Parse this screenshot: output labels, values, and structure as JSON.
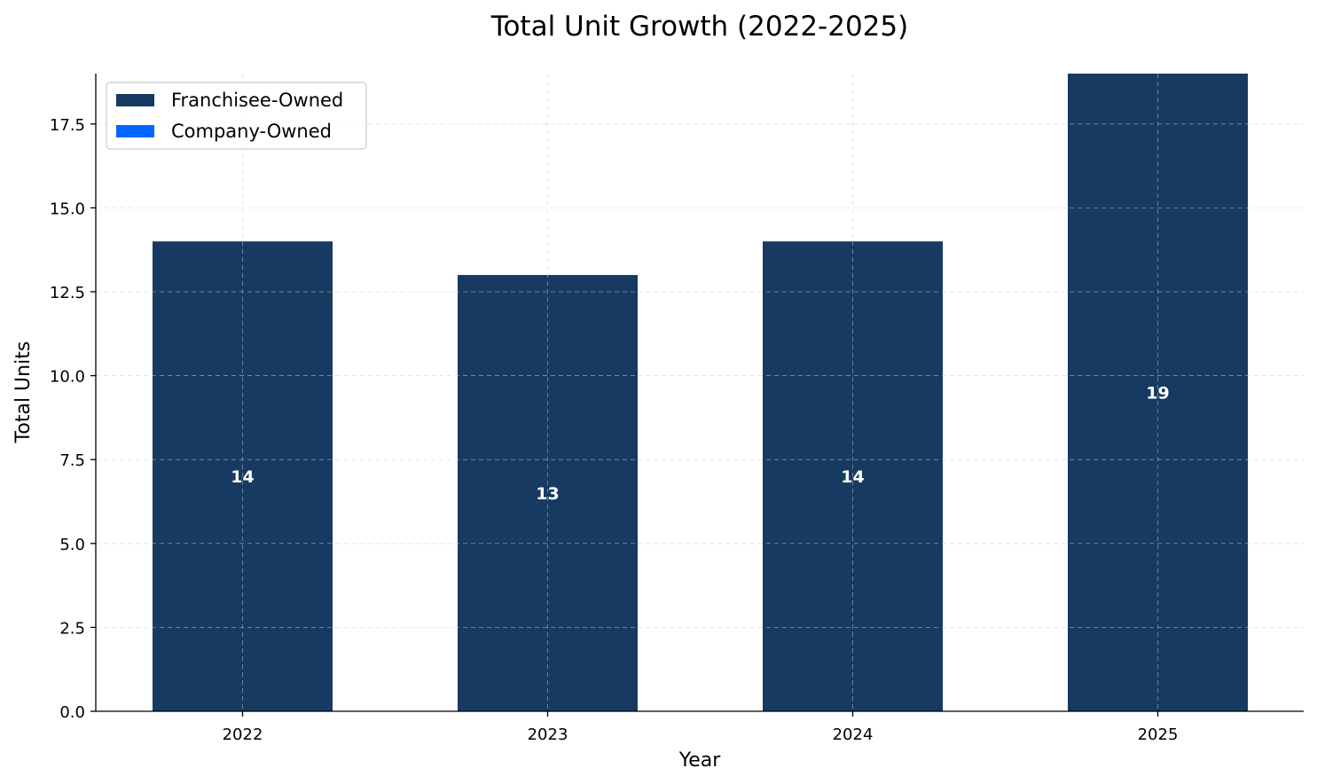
{
  "chart_data": {
    "type": "bar",
    "stacked": true,
    "title": "Total Unit Growth (2022-2025)",
    "xlabel": "Year",
    "ylabel": "Total Units",
    "categories": [
      "2022",
      "2023",
      "2024",
      "2025"
    ],
    "series": [
      {
        "name": "Franchisee-Owned",
        "color": "#163a62",
        "values": [
          14,
          13,
          14,
          19
        ]
      },
      {
        "name": "Company-Owned",
        "color": "#0066ff",
        "values": [
          0,
          0,
          0,
          0
        ]
      }
    ],
    "totals": [
      14,
      13,
      14,
      19
    ],
    "total_labels": [
      "14",
      "13",
      "14",
      "19"
    ],
    "ylim": [
      0,
      19
    ],
    "yticks": [
      0.0,
      2.5,
      5.0,
      7.5,
      10.0,
      12.5,
      15.0,
      17.5
    ],
    "ytick_labels": [
      "0.0",
      "2.5",
      "5.0",
      "7.5",
      "10.0",
      "12.5",
      "15.0",
      "17.5"
    ],
    "grid": true,
    "legend_position": "top-left"
  }
}
